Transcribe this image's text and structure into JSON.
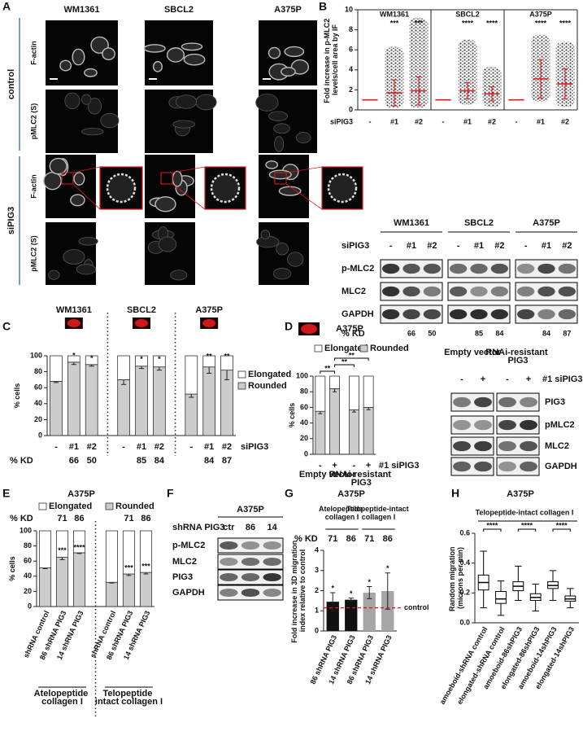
{
  "panel_labels": [
    "A",
    "B",
    "C",
    "D",
    "E",
    "F",
    "G",
    "H"
  ],
  "panel_a": {
    "cell_lines": [
      "WM1361",
      "SBCL2",
      "A375P"
    ],
    "conditions": [
      "control",
      "siPIG3"
    ],
    "stains": [
      "F-actin",
      "pMLC2 (S)"
    ]
  },
  "blot_b": {
    "cell_lines": [
      "WM1361",
      "SBCL2",
      "A375P"
    ],
    "treatment": "siPIG3",
    "lanes": [
      "-",
      "#1",
      "#2"
    ],
    "proteins": [
      "p-MLC2",
      "MLC2",
      "GAPDH"
    ],
    "kd_label": "% KD",
    "kd": [
      [
        66,
        50
      ],
      [
        85,
        84
      ],
      [
        84,
        87
      ]
    ]
  },
  "blot_d": {
    "groups": [
      "Empty vector",
      "RNAi-resistant PIG3"
    ],
    "lanes": [
      "-",
      "+"
    ],
    "treatment": "#1 siPIG3",
    "proteins": [
      "PIG3",
      "pMLC2",
      "MLC2",
      "GAPDH"
    ]
  },
  "blot_f": {
    "title": "A375P",
    "treatment": "shRNA PIG3",
    "lanes": [
      "ctr",
      "86",
      "14"
    ],
    "proteins": [
      "p-MLC2",
      "MLC2",
      "PIG3",
      "GAPDH"
    ]
  },
  "chart_data": [
    {
      "type": "dot",
      "y_label": "Fold increase in p-MLC2 levels/cell area by IF",
      "x_label": "siPIG3",
      "ylim": [
        0,
        10
      ],
      "yticks": [
        0,
        2,
        4,
        6,
        8,
        10
      ],
      "mean_color": "#e0191f",
      "groups": [
        {
          "name": "WM1361",
          "categories": [
            "-",
            "#1",
            "#2"
          ],
          "means": [
            1,
            1.7,
            1.9
          ],
          "sd": [
            0,
            1.3,
            1.4
          ],
          "min": [
            null,
            0.2,
            0.2
          ],
          "max": [
            null,
            6.3,
            9.2
          ],
          "significance": [
            null,
            "***",
            "***"
          ]
        },
        {
          "name": "SBCL2",
          "categories": [
            "-",
            "#1",
            "#2"
          ],
          "means": [
            1,
            1.9,
            1.6
          ],
          "sd": [
            0,
            0.8,
            0.7
          ],
          "min": [
            null,
            0.5,
            0.3
          ],
          "max": [
            null,
            7,
            4.3
          ],
          "significance": [
            null,
            "****",
            "****"
          ]
        },
        {
          "name": "A375P",
          "categories": [
            "-",
            "#1",
            "#2"
          ],
          "means": [
            1,
            3.1,
            2.6
          ],
          "sd": [
            0,
            1.9,
            1.5
          ],
          "min": [
            null,
            0.8,
            0.3
          ],
          "max": [
            null,
            7.5,
            6.8
          ],
          "significance": [
            null,
            "****",
            "****"
          ]
        }
      ]
    },
    {
      "type": "stacked_bar",
      "y_label": "% cells",
      "x_label": "siPIG3",
      "ylim": [
        0,
        100
      ],
      "yticks": [
        0,
        20,
        40,
        60,
        80,
        100
      ],
      "legend": "right",
      "groups": [
        {
          "name": "WM1361",
          "categories": [
            "-",
            "#1",
            "#2"
          ]
        },
        {
          "name": "SBCL2",
          "categories": [
            "-",
            "#1",
            "#2"
          ]
        },
        {
          "name": "A375P",
          "categories": [
            "-",
            "#1",
            "#2"
          ]
        }
      ],
      "series": [
        {
          "name": "Rounded",
          "color": "#cccccc",
          "values": [
            68,
            92,
            89,
            70,
            87,
            86,
            52,
            86,
            82
          ],
          "errors": [
            1.5,
            3,
            2,
            6,
            3,
            4,
            4,
            8,
            12
          ]
        },
        {
          "name": "Elongated",
          "color": "#ffffff",
          "values": [
            32,
            8,
            11,
            30,
            13,
            14,
            48,
            14,
            18
          ]
        }
      ],
      "significance": [
        null,
        "*",
        "*",
        null,
        "*",
        "*",
        null,
        "**",
        "**"
      ],
      "kd_label": "% KD",
      "kd": [
        null,
        66,
        50,
        null,
        85,
        84,
        null,
        84,
        87
      ]
    },
    {
      "type": "stacked_bar",
      "title": "A375P",
      "y_label": "% cells",
      "x_label": "#1 siPIG3",
      "ylim": [
        0,
        100
      ],
      "yticks": [
        0,
        20,
        40,
        60,
        80,
        100
      ],
      "legend": "top",
      "groups": [
        {
          "name": "Empty vector",
          "categories": [
            "-",
            "+"
          ]
        },
        {
          "name": "RNAi-resistant PIG3",
          "categories": [
            "-",
            "+"
          ]
        }
      ],
      "series": [
        {
          "name": "Rounded",
          "color": "#cccccc",
          "values": [
            55,
            84,
            57,
            60
          ],
          "errors": [
            3,
            4,
            3,
            3
          ]
        },
        {
          "name": "Elongated",
          "color": "#ffffff",
          "values": [
            45,
            16,
            43,
            40
          ]
        }
      ],
      "brackets": [
        "**",
        "**",
        "**"
      ]
    },
    {
      "type": "stacked_bar",
      "title": "A375P",
      "y_label": "% cells",
      "ylim": [
        0,
        100
      ],
      "yticks": [
        0,
        20,
        40,
        60,
        80,
        100
      ],
      "legend": "top",
      "groups": [
        {
          "name": "Atelopeptide collagen I",
          "categories": [
            "shRNA control",
            "86 shRNA PIG3",
            "14 shRNA PIG3"
          ]
        },
        {
          "name": "Telopeptide intact collagen I",
          "categories": [
            "shRNA control",
            "86 shRNA PIG3",
            "14 shRNA PIG3"
          ]
        }
      ],
      "series": [
        {
          "name": "Rounded",
          "color": "#cccccc",
          "values": [
            51,
            65,
            71,
            32,
            43,
            45
          ],
          "errors": [
            1,
            3,
            1,
            1,
            2,
            2
          ]
        },
        {
          "name": "Elongated",
          "color": "#ffffff",
          "values": [
            49,
            35,
            29,
            68,
            57,
            55
          ]
        }
      ],
      "significance": [
        null,
        "***",
        "****",
        null,
        "***",
        "***"
      ],
      "kd_label": "% KD",
      "kd": [
        null,
        71,
        86,
        null,
        71,
        86
      ]
    },
    {
      "type": "bar",
      "title": "A375P",
      "y_label": "Fold increase in 3D migration index relative to control",
      "ylim": [
        0,
        4
      ],
      "yticks": [
        0,
        1,
        2,
        3,
        4
      ],
      "groups": [
        {
          "name": "Atelopeptide collagen I",
          "categories": [
            "86 shRNA PIG3",
            "14 shRNA PIG3"
          ]
        },
        {
          "name": "Telopeptide-intact collagen I",
          "categories": [
            "86 shRNA PIG3",
            "14 shRNA PIG3"
          ]
        }
      ],
      "values": [
        1.45,
        1.55,
        1.9,
        1.98
      ],
      "errors": [
        0.45,
        0.08,
        0.3,
        0.9
      ],
      "colors": [
        "#111111",
        "#111111",
        "#a6a6a6",
        "#a6a6a6"
      ],
      "significance": [
        "*",
        "*",
        "*",
        "*"
      ],
      "reference": {
        "value": 1.15,
        "label": "control",
        "color": "#e0191f"
      },
      "kd_label": "% KD",
      "kd": [
        71,
        86,
        71,
        86
      ]
    },
    {
      "type": "box",
      "title": "A375P",
      "subtitle": "Telopeptide-intact collagen I",
      "y_label": "Random migration (microns per min)",
      "ylim": [
        0,
        0.6
      ],
      "yticks": [
        {
          "value": 0,
          "label": "0.0"
        },
        {
          "value": 0.2,
          "label": "0.2"
        },
        {
          "value": 0.4,
          "label": "0.4"
        },
        {
          "value": 0.6,
          "label": "0.6"
        }
      ],
      "categories": [
        "amoeboid-shRNA control",
        "elongated-shRNA control",
        "amoeboid-86shPIG3",
        "elongated-86shPIG3",
        "amoeboid-14shPIG3",
        "elongated-14shPIG3"
      ],
      "whisker_low": [
        0.1,
        0.05,
        0.15,
        0.08,
        0.15,
        0.1
      ],
      "q1": [
        0.22,
        0.13,
        0.215,
        0.15,
        0.23,
        0.145
      ],
      "median": [
        0.27,
        0.16,
        0.245,
        0.17,
        0.25,
        0.16
      ],
      "q3": [
        0.32,
        0.21,
        0.275,
        0.195,
        0.275,
        0.18
      ],
      "whisker_high": [
        0.48,
        0.28,
        0.38,
        0.26,
        0.35,
        0.23
      ],
      "significance": [
        "****",
        null,
        "****",
        null,
        "****",
        null
      ]
    }
  ]
}
